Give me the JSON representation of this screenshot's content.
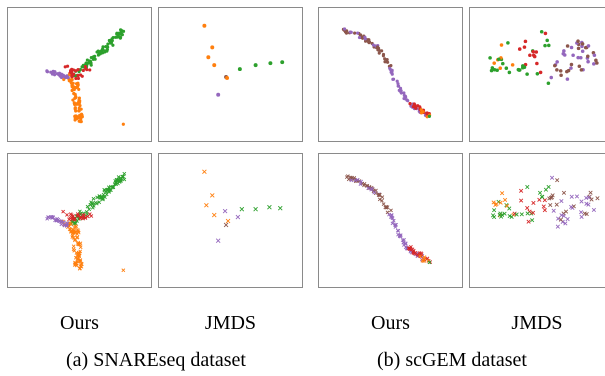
{
  "colors": {
    "orange": "#ff7f0e",
    "green": "#2ca02c",
    "purple": "#9467bd",
    "red": "#d62728",
    "brown": "#8c564b"
  },
  "groups": [
    {
      "caption": "(a) SNAREseq dataset",
      "columns": [
        "Ours",
        "JMDS"
      ]
    },
    {
      "caption": "(b) scGEM dataset",
      "columns": [
        "Ours",
        "JMDS"
      ]
    }
  ]
}
